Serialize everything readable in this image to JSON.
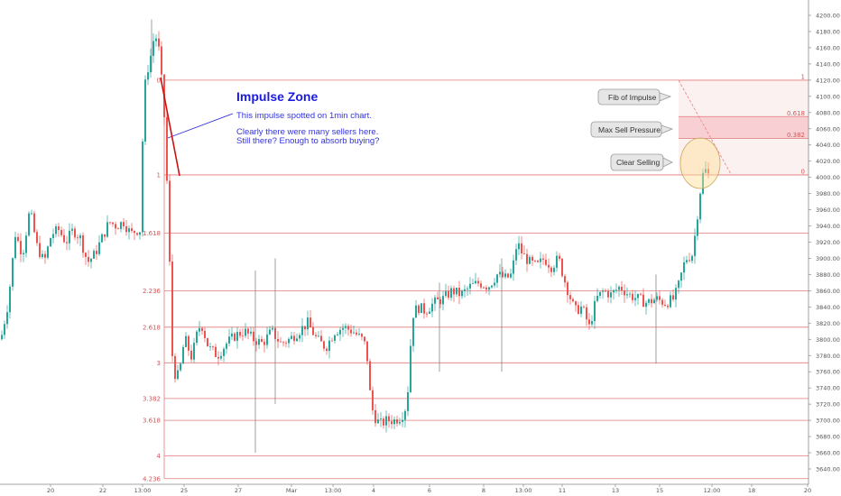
{
  "chart_data": {
    "type": "candlestick",
    "ylim": [
      3630,
      4220
    ],
    "y_ticks": [
      "4200.00",
      "4180.00",
      "4160.00",
      "4140.00",
      "4120.00",
      "4100.00",
      "4080.00",
      "4060.00",
      "4040.00",
      "4020.00",
      "4000.00",
      "3980.00",
      "3960.00",
      "3940.00",
      "3920.00",
      "3900.00",
      "3880.00",
      "3860.00",
      "3840.00",
      "3820.00",
      "3800.00",
      "3780.00",
      "3760.00",
      "3740.00",
      "3720.00",
      "3700.00",
      "3680.00",
      "3660.00",
      "3640.00"
    ],
    "x_ticks": [
      "20",
      "22",
      "13:00",
      "25",
      "27",
      "Mar",
      "13:00",
      "4",
      "6",
      "8",
      "13:00",
      "11",
      "13",
      "15",
      "12:00",
      "18",
      "20"
    ],
    "fib_extension": {
      "title": "Impulse Zone",
      "lines": [
        {
          "label": "1",
          "value": 4003
        },
        {
          "label": "1.618",
          "value": 3931
        },
        {
          "label": "2.236",
          "value": 3860
        },
        {
          "label": "2.618",
          "value": 3815
        },
        {
          "label": "3",
          "value": 3771
        },
        {
          "label": "3.382",
          "value": 3727
        },
        {
          "label": "3.618",
          "value": 3700
        },
        {
          "label": "4",
          "value": 3656
        },
        {
          "label": "4.236",
          "value": 3628
        }
      ],
      "top_value": 4120
    },
    "fib_retracement": {
      "levels": [
        {
          "label": "1",
          "value": 4120
        },
        {
          "label": "0.618",
          "value": 4075
        },
        {
          "label": "0.382",
          "value": 4048
        },
        {
          "label": "0",
          "value": 4003
        }
      ]
    },
    "annotations": {
      "zone_title": "Impulse Zone",
      "zone_line1": "This impulse spotted on 1min chart.",
      "zone_line2": "Clearly there were many sellers here.",
      "zone_line3": "Still there?  Enough to absorb buying?",
      "callout1": "Fib of Impulse",
      "callout2": "Max Sell Pressure",
      "callout3": "Clear Selling"
    },
    "colors": {
      "up": "#26a69a",
      "down": "#ef5350",
      "fib_line": "#e07a7a",
      "zone_text": "#1a1ae0",
      "arrow": "#cc1111"
    }
  }
}
